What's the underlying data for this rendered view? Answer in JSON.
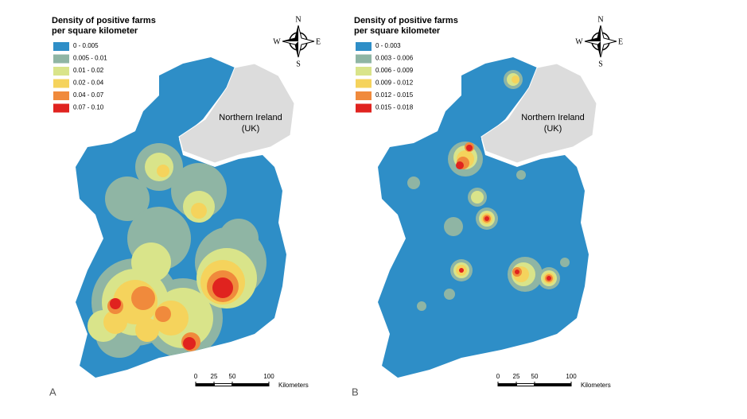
{
  "panels": [
    {
      "label": "A",
      "legend": {
        "title_lines": [
          "Density of positive farms",
          "per square kilometer"
        ],
        "entries": [
          {
            "label": "0 - 0.005",
            "color": "#2e8ec7"
          },
          {
            "label": "0.005 - 0.01",
            "color": "#8fb5a4"
          },
          {
            "label": "0.01 - 0.02",
            "color": "#d9e48a"
          },
          {
            "label": "0.02 - 0.04",
            "color": "#f5d35c"
          },
          {
            "label": "0.04 - 0.07",
            "color": "#f08a3c"
          },
          {
            "label": "0.07 - 0.10",
            "color": "#e0231f"
          }
        ]
      },
      "region_label": [
        "Northern Ireland",
        "(UK)"
      ],
      "compass": {
        "n": "N",
        "s": "S",
        "e": "E",
        "w": "W"
      },
      "scale": {
        "ticks": [
          0,
          25,
          50,
          100
        ],
        "unit": "Kilometers"
      }
    },
    {
      "label": "B",
      "legend": {
        "title_lines": [
          "Density of positive farms",
          "per square kilometer"
        ],
        "entries": [
          {
            "label": "0 - 0.003",
            "color": "#2e8ec7"
          },
          {
            "label": "0.003 - 0.006",
            "color": "#8fb5a4"
          },
          {
            "label": "0.006 - 0.009",
            "color": "#d9e48a"
          },
          {
            "label": "0.009 - 0.012",
            "color": "#f5d35c"
          },
          {
            "label": "0.012 - 0.015",
            "color": "#f08a3c"
          },
          {
            "label": "0.015 - 0.018",
            "color": "#e0231f"
          }
        ]
      },
      "region_label": [
        "Northern Ireland",
        "(UK)"
      ],
      "compass": {
        "n": "N",
        "s": "S",
        "e": "E",
        "w": "W"
      },
      "scale": {
        "ticks": [
          0,
          25,
          50,
          100
        ],
        "unit": "Kilometers"
      }
    }
  ]
}
